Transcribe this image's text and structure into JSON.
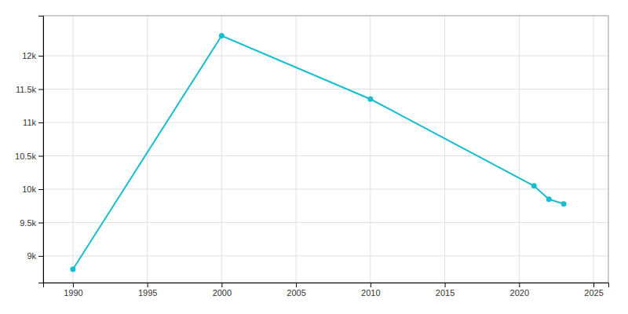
{
  "chart_data": {
    "type": "line",
    "x": [
      1990,
      2000,
      2010,
      2021,
      2022,
      2023
    ],
    "values": [
      8800,
      12300,
      11350,
      10050,
      9850,
      9780
    ],
    "color": "#17becf",
    "marker": "circle",
    "xlim": [
      1988,
      2026
    ],
    "ylim": [
      8600,
      12600
    ],
    "xticks": [
      1990,
      1995,
      2000,
      2005,
      2010,
      2015,
      2020,
      2025
    ],
    "yticks": [
      {
        "value": 9000,
        "label": "9k"
      },
      {
        "value": 9500,
        "label": "9.5k"
      },
      {
        "value": 10000,
        "label": "10k"
      },
      {
        "value": 10500,
        "label": "10.5k"
      },
      {
        "value": 11000,
        "label": "11k"
      },
      {
        "value": 11500,
        "label": "11.5k"
      },
      {
        "value": 12000,
        "label": "12k"
      }
    ],
    "grid": true
  }
}
